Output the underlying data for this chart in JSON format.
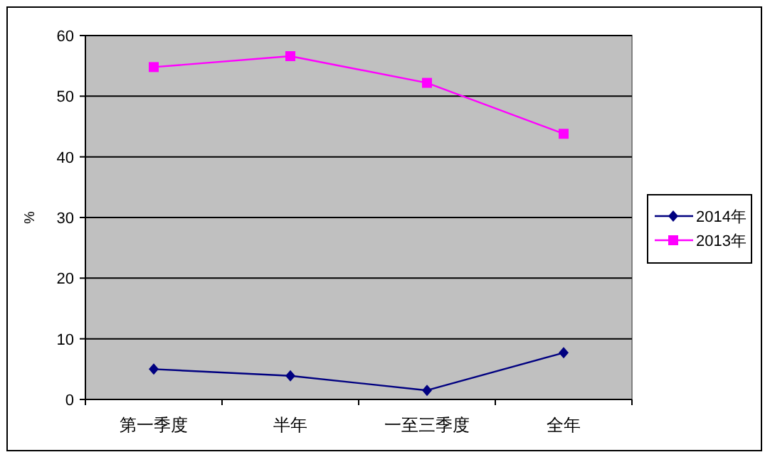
{
  "chart_data": {
    "type": "line",
    "ylabel": "%",
    "categories": [
      "第一季度",
      "半年",
      "一至三季度",
      "全年"
    ],
    "series": [
      {
        "name": "2014年",
        "color": "#000080",
        "values": [
          5.0,
          3.9,
          1.5,
          7.7
        ],
        "marker": "diamond"
      },
      {
        "name": "2013年",
        "color": "#ff00ff",
        "values": [
          54.8,
          56.6,
          52.2,
          43.8
        ],
        "marker": "square"
      }
    ],
    "ylim": [
      0,
      60
    ],
    "yticks": [
      0,
      10,
      20,
      30,
      40,
      50,
      60
    ],
    "grid": "y",
    "legend": "right",
    "line_style": "solid"
  }
}
